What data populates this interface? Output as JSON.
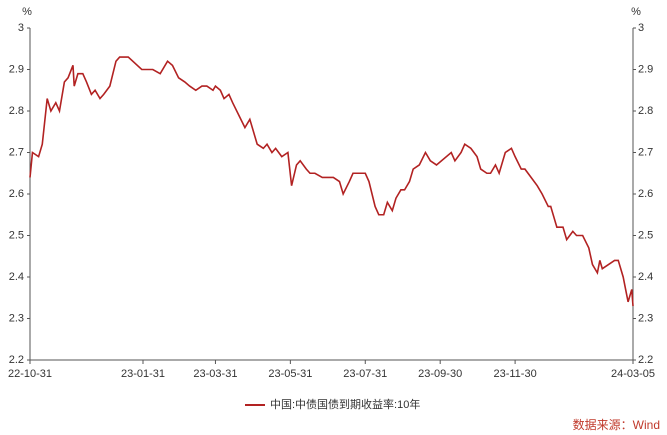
{
  "chart_data": {
    "type": "line",
    "y_label": "%",
    "x": [
      "22-10-31",
      "22-11-02",
      "22-11-07",
      "22-11-10",
      "22-11-14",
      "22-11-17",
      "22-11-21",
      "22-11-24",
      "22-11-28",
      "22-12-01",
      "22-12-05",
      "22-12-06",
      "22-12-09",
      "22-12-13",
      "22-12-16",
      "22-12-20",
      "22-12-23",
      "22-12-27",
      "22-12-30",
      "23-01-04",
      "23-01-09",
      "23-01-12",
      "23-01-16",
      "23-01-19",
      "23-01-30",
      "23-02-03",
      "23-02-08",
      "23-02-14",
      "23-02-20",
      "23-02-24",
      "23-03-01",
      "23-03-06",
      "23-03-10",
      "23-03-15",
      "23-03-20",
      "23-03-24",
      "23-03-29",
      "23-03-31",
      "23-04-04",
      "23-04-07",
      "23-04-11",
      "23-04-14",
      "23-04-19",
      "23-04-24",
      "23-04-28",
      "23-05-04",
      "23-05-09",
      "23-05-12",
      "23-05-16",
      "23-05-19",
      "23-05-24",
      "23-05-29",
      "23-06-01",
      "23-06-05",
      "23-06-08",
      "23-06-13",
      "23-06-16",
      "23-06-20",
      "23-06-26",
      "23-06-30",
      "23-07-05",
      "23-07-10",
      "23-07-13",
      "23-07-18",
      "23-07-21",
      "23-07-25",
      "23-07-31",
      "23-08-03",
      "23-08-08",
      "23-08-11",
      "23-08-15",
      "23-08-18",
      "23-08-22",
      "23-08-25",
      "23-08-29",
      "23-09-01",
      "23-09-05",
      "23-09-08",
      "23-09-13",
      "23-09-18",
      "23-09-22",
      "23-09-27",
      "23-10-09",
      "23-10-12",
      "23-10-17",
      "23-10-20",
      "23-10-25",
      "23-10-30",
      "23-11-02",
      "23-11-07",
      "23-11-10",
      "23-11-14",
      "23-11-17",
      "23-11-22",
      "23-11-27",
      "23-11-30",
      "23-12-05",
      "23-12-08",
      "23-12-13",
      "23-12-18",
      "23-12-22",
      "23-12-27",
      "23-12-29",
      "24-01-03",
      "24-01-08",
      "24-01-11",
      "24-01-16",
      "24-01-19",
      "24-01-24",
      "24-01-29",
      "24-02-01",
      "24-02-05",
      "24-02-07",
      "24-02-09",
      "24-02-19",
      "24-02-22",
      "24-02-26",
      "24-02-28",
      "24-03-01",
      "24-03-04",
      "24-03-05"
    ],
    "series": [
      {
        "name": "中国:中债国债到期收益率:10年",
        "color": "#b22222",
        "values": [
          2.64,
          2.7,
          2.69,
          2.72,
          2.83,
          2.8,
          2.82,
          2.8,
          2.87,
          2.88,
          2.91,
          2.86,
          2.89,
          2.89,
          2.87,
          2.84,
          2.85,
          2.83,
          2.84,
          2.86,
          2.92,
          2.93,
          2.93,
          2.93,
          2.9,
          2.9,
          2.9,
          2.89,
          2.92,
          2.91,
          2.88,
          2.87,
          2.86,
          2.85,
          2.86,
          2.86,
          2.85,
          2.86,
          2.85,
          2.83,
          2.84,
          2.82,
          2.79,
          2.76,
          2.78,
          2.72,
          2.71,
          2.72,
          2.7,
          2.71,
          2.69,
          2.7,
          2.62,
          2.67,
          2.68,
          2.66,
          2.65,
          2.65,
          2.64,
          2.64,
          2.64,
          2.63,
          2.6,
          2.63,
          2.65,
          2.65,
          2.65,
          2.63,
          2.57,
          2.55,
          2.55,
          2.58,
          2.56,
          2.59,
          2.61,
          2.61,
          2.63,
          2.66,
          2.67,
          2.7,
          2.68,
          2.67,
          2.7,
          2.68,
          2.7,
          2.72,
          2.71,
          2.69,
          2.66,
          2.65,
          2.65,
          2.67,
          2.65,
          2.7,
          2.71,
          2.69,
          2.66,
          2.66,
          2.64,
          2.62,
          2.6,
          2.57,
          2.57,
          2.52,
          2.52,
          2.49,
          2.51,
          2.5,
          2.5,
          2.47,
          2.43,
          2.41,
          2.44,
          2.42,
          2.44,
          2.44,
          2.4,
          2.37,
          2.34,
          2.37,
          2.33
        ]
      }
    ],
    "xlim": [
      "22-10-31",
      "24-03-05"
    ],
    "xticks": [
      "22-10-31",
      "23-01-31",
      "23-03-31",
      "23-05-31",
      "23-07-31",
      "23-09-30",
      "23-11-30",
      "24-03-05"
    ],
    "ylim": [
      2.2,
      3
    ],
    "yticks": [
      2.2,
      2.3,
      2.4,
      2.5,
      2.6,
      2.7,
      2.8,
      2.9,
      3
    ],
    "source": "数据来源：Wind"
  }
}
